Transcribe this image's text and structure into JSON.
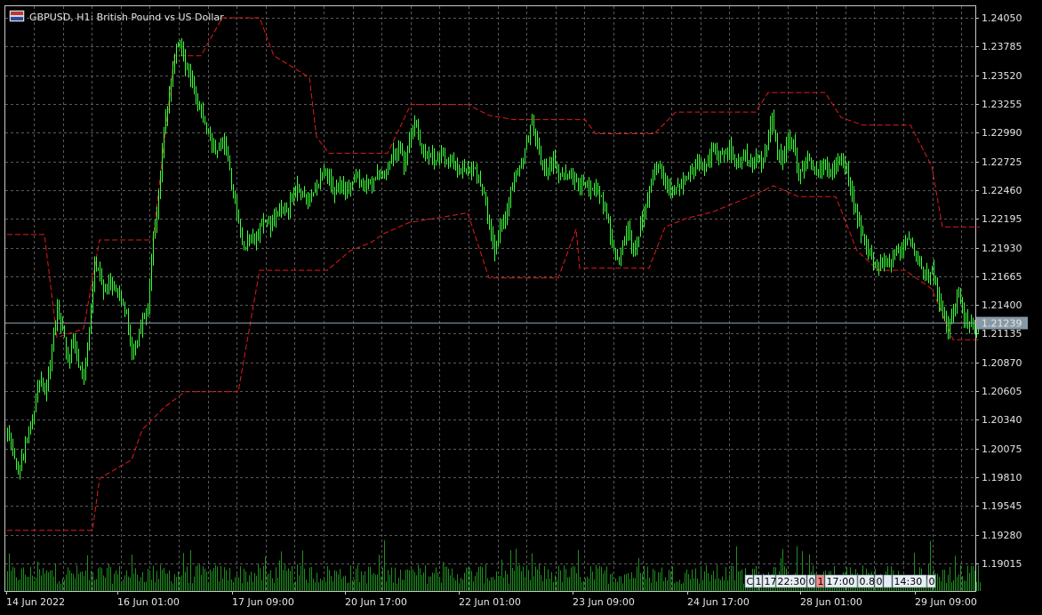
{
  "window": {
    "title": "GBPUSD, H1:  British Pound vs US Dollar"
  },
  "colors": {
    "background": "#000000",
    "grid": "#5a5a5a",
    "candles": "#3cff3c",
    "channel": "#e31a1a",
    "volume": "#1f8f1f",
    "axis_text": "#e6e6e6",
    "price_tag_bg": "#8899a6"
  },
  "chart_data": {
    "type": "candlestick",
    "symbol": "GBPUSD",
    "timeframe": "H1",
    "description": "British Pound vs US Dollar",
    "ylim": [
      1.1876,
      1.2418
    ],
    "y_ticks": [
      "1.24050",
      "1.23785",
      "1.23520",
      "1.23255",
      "1.22990",
      "1.22725",
      "1.22460",
      "1.22195",
      "1.21930",
      "1.21665",
      "1.21400",
      "1.21135",
      "1.20870",
      "1.20605",
      "1.20340",
      "1.20075",
      "1.19810",
      "1.19545",
      "1.19280",
      "1.19015"
    ],
    "x_ticks": [
      "14 Jun 2022",
      "16 Jun 01:00",
      "17 Jun 09:00",
      "20 Jun 17:00",
      "22 Jun 01:00",
      "23 Jun 09:00",
      "24 Jun 17:00",
      "28 Jun 01:00",
      "29 Jun 09:00"
    ],
    "current_price": "1.21239",
    "grid": true,
    "close_anchors": [
      [
        0,
        1.2024
      ],
      [
        6,
        1.1985
      ],
      [
        10,
        1.201
      ],
      [
        14,
        1.2035
      ],
      [
        18,
        1.207
      ],
      [
        21,
        1.2058
      ],
      [
        23,
        1.2075
      ],
      [
        25,
        1.21
      ],
      [
        28,
        1.2135
      ],
      [
        31,
        1.2118
      ],
      [
        34,
        1.209
      ],
      [
        37,
        1.2112
      ],
      [
        40,
        1.2085
      ],
      [
        43,
        1.207
      ],
      [
        46,
        1.212
      ],
      [
        49,
        1.218
      ],
      [
        52,
        1.2165
      ],
      [
        55,
        1.215
      ],
      [
        58,
        1.216
      ],
      [
        61,
        1.2155
      ],
      [
        64,
        1.2145
      ],
      [
        67,
        1.213
      ],
      [
        70,
        1.21
      ],
      [
        73,
        1.2108
      ],
      [
        76,
        1.2125
      ],
      [
        79,
        1.2138
      ],
      [
        82,
        1.22
      ],
      [
        85,
        1.224
      ],
      [
        88,
        1.23
      ],
      [
        91,
        1.2335
      ],
      [
        94,
        1.2372
      ],
      [
        97,
        1.2385
      ],
      [
        100,
        1.2362
      ],
      [
        103,
        1.235
      ],
      [
        106,
        1.233
      ],
      [
        109,
        1.2318
      ],
      [
        112,
        1.2302
      ],
      [
        115,
        1.229
      ],
      [
        118,
        1.228
      ],
      [
        121,
        1.2295
      ],
      [
        124,
        1.2275
      ],
      [
        127,
        1.224
      ],
      [
        130,
        1.2215
      ],
      [
        133,
        1.219
      ],
      [
        136,
        1.2205
      ],
      [
        139,
        1.22
      ],
      [
        142,
        1.2212
      ],
      [
        145,
        1.222
      ],
      [
        148,
        1.221
      ],
      [
        151,
        1.2222
      ],
      [
        154,
        1.223
      ],
      [
        157,
        1.2225
      ],
      [
        160,
        1.224
      ],
      [
        163,
        1.225
      ],
      [
        166,
        1.2242
      ],
      [
        169,
        1.2238
      ],
      [
        172,
        1.2245
      ],
      [
        175,
        1.2252
      ],
      [
        178,
        1.2265
      ],
      [
        181,
        1.2258
      ],
      [
        184,
        1.224
      ],
      [
        187,
        1.2255
      ],
      [
        190,
        1.2245
      ],
      [
        193,
        1.225
      ],
      [
        196,
        1.2258
      ],
      [
        199,
        1.2248
      ],
      [
        202,
        1.2255
      ],
      [
        205,
        1.2252
      ],
      [
        208,
        1.2262
      ],
      [
        211,
        1.2258
      ],
      [
        214,
        1.227
      ],
      [
        217,
        1.228
      ],
      [
        220,
        1.2285
      ],
      [
        223,
        1.227
      ],
      [
        226,
        1.229
      ],
      [
        229,
        1.231
      ],
      [
        232,
        1.2288
      ],
      [
        235,
        1.2275
      ],
      [
        238,
        1.228
      ],
      [
        241,
        1.2272
      ],
      [
        244,
        1.2278
      ],
      [
        247,
        1.227
      ],
      [
        250,
        1.2275
      ],
      [
        253,
        1.2265
      ],
      [
        256,
        1.2268
      ],
      [
        259,
        1.2262
      ],
      [
        262,
        1.227
      ],
      [
        265,
        1.2258
      ],
      [
        268,
        1.224
      ],
      [
        271,
        1.2215
      ],
      [
        274,
        1.219
      ],
      [
        277,
        1.221
      ],
      [
        280,
        1.222
      ],
      [
        283,
        1.2245
      ],
      [
        286,
        1.226
      ],
      [
        289,
        1.227
      ],
      [
        292,
        1.229
      ],
      [
        295,
        1.231
      ],
      [
        298,
        1.2285
      ],
      [
        301,
        1.227
      ],
      [
        304,
        1.2265
      ],
      [
        307,
        1.2275
      ],
      [
        310,
        1.2258
      ],
      [
        313,
        1.226
      ],
      [
        316,
        1.2262
      ],
      [
        319,
        1.2255
      ],
      [
        322,
        1.225
      ],
      [
        325,
        1.2252
      ],
      [
        328,
        1.2245
      ],
      [
        331,
        1.2248
      ],
      [
        334,
        1.224
      ],
      [
        337,
        1.222
      ],
      [
        340,
        1.22
      ],
      [
        343,
        1.218
      ],
      [
        346,
        1.2195
      ],
      [
        349,
        1.221
      ],
      [
        352,
        1.2185
      ],
      [
        355,
        1.2205
      ],
      [
        358,
        1.2225
      ],
      [
        361,
        1.2248
      ],
      [
        364,
        1.2262
      ],
      [
        367,
        1.227
      ],
      [
        370,
        1.2255
      ],
      [
        373,
        1.2242
      ],
      [
        376,
        1.225
      ],
      [
        379,
        1.2248
      ],
      [
        382,
        1.2258
      ],
      [
        385,
        1.2262
      ],
      [
        388,
        1.227
      ],
      [
        391,
        1.2265
      ],
      [
        394,
        1.2272
      ],
      [
        397,
        1.229
      ],
      [
        400,
        1.228
      ],
      [
        403,
        1.2278
      ],
      [
        406,
        1.2285
      ],
      [
        409,
        1.2275
      ],
      [
        412,
        1.227
      ],
      [
        415,
        1.2278
      ],
      [
        418,
        1.2268
      ],
      [
        421,
        1.2275
      ],
      [
        424,
        1.227
      ],
      [
        427,
        1.2285
      ],
      [
        430,
        1.2312
      ],
      [
        433,
        1.228
      ],
      [
        436,
        1.2272
      ],
      [
        439,
        1.2295
      ],
      [
        442,
        1.2288
      ],
      [
        445,
        1.2262
      ],
      [
        448,
        1.227
      ],
      [
        451,
        1.2278
      ],
      [
        454,
        1.2262
      ],
      [
        457,
        1.2265
      ],
      [
        460,
        1.2268
      ],
      [
        463,
        1.2262
      ],
      [
        466,
        1.227
      ],
      [
        469,
        1.228
      ],
      [
        472,
        1.2262
      ],
      [
        475,
        1.224
      ],
      [
        478,
        1.222
      ],
      [
        481,
        1.2202
      ],
      [
        484,
        1.2192
      ],
      [
        487,
        1.218
      ],
      [
        490,
        1.2176
      ],
      [
        493,
        1.2182
      ],
      [
        496,
        1.2178
      ],
      [
        499,
        1.2185
      ],
      [
        502,
        1.219
      ],
      [
        505,
        1.22
      ],
      [
        508,
        1.2196
      ],
      [
        511,
        1.2186
      ],
      [
        514,
        1.2175
      ],
      [
        517,
        1.2168
      ],
      [
        520,
        1.2172
      ],
      [
        523,
        1.215
      ],
      [
        526,
        1.2135
      ],
      [
        529,
        1.2115
      ],
      [
        532,
        1.214
      ],
      [
        535,
        1.215
      ],
      [
        538,
        1.2128
      ],
      [
        541,
        1.2122
      ],
      [
        544,
        1.212
      ],
      [
        547,
        1.2123
      ]
    ],
    "channel_upper": [
      [
        0,
        1.2205
      ],
      [
        21,
        1.2205
      ],
      [
        28,
        1.211
      ],
      [
        43,
        1.2118
      ],
      [
        52,
        1.22
      ],
      [
        82,
        1.22
      ],
      [
        94,
        1.237
      ],
      [
        109,
        1.237
      ],
      [
        121,
        1.2405
      ],
      [
        142,
        1.2405
      ],
      [
        150,
        1.237
      ],
      [
        170,
        1.235
      ],
      [
        174,
        1.2295
      ],
      [
        181,
        1.228
      ],
      [
        214,
        1.228
      ],
      [
        227,
        1.2325
      ],
      [
        259,
        1.2325
      ],
      [
        271,
        1.2315
      ],
      [
        285,
        1.2311
      ],
      [
        325,
        1.2311
      ],
      [
        331,
        1.2298
      ],
      [
        364,
        1.2298
      ],
      [
        376,
        1.2318
      ],
      [
        421,
        1.2318
      ],
      [
        428,
        1.2336
      ],
      [
        460,
        1.2336
      ],
      [
        469,
        1.2313
      ],
      [
        481,
        1.2306
      ],
      [
        508,
        1.2306
      ],
      [
        520,
        1.2268
      ],
      [
        526,
        1.2212
      ],
      [
        547,
        1.2212
      ]
    ],
    "channel_lower": [
      [
        0,
        1.1932
      ],
      [
        48,
        1.1932
      ],
      [
        52,
        1.198
      ],
      [
        70,
        1.1997
      ],
      [
        76,
        1.2025
      ],
      [
        88,
        1.2045
      ],
      [
        100,
        1.206
      ],
      [
        130,
        1.206
      ],
      [
        142,
        1.2172
      ],
      [
        180,
        1.2172
      ],
      [
        193,
        1.219
      ],
      [
        205,
        1.2198
      ],
      [
        212,
        1.2206
      ],
      [
        226,
        1.2216
      ],
      [
        259,
        1.2225
      ],
      [
        271,
        1.2165
      ],
      [
        310,
        1.2165
      ],
      [
        320,
        1.221
      ],
      [
        322,
        1.2174
      ],
      [
        361,
        1.2174
      ],
      [
        370,
        1.2212
      ],
      [
        382,
        1.222
      ],
      [
        397,
        1.2226
      ],
      [
        418,
        1.224
      ],
      [
        431,
        1.225
      ],
      [
        445,
        1.224
      ],
      [
        466,
        1.224
      ],
      [
        478,
        1.219
      ],
      [
        490,
        1.2172
      ],
      [
        505,
        1.2172
      ],
      [
        520,
        1.2155
      ],
      [
        532,
        1.2108
      ],
      [
        547,
        1.2108
      ]
    ],
    "volume_note": "tick volume histogram at bottom"
  },
  "legend_box": {
    "cells": [
      "C",
      "1",
      "17:",
      "22:30",
      "0",
      "1",
      "17:00",
      "0.8",
      "0",
      "",
      "14:30",
      "0"
    ]
  }
}
